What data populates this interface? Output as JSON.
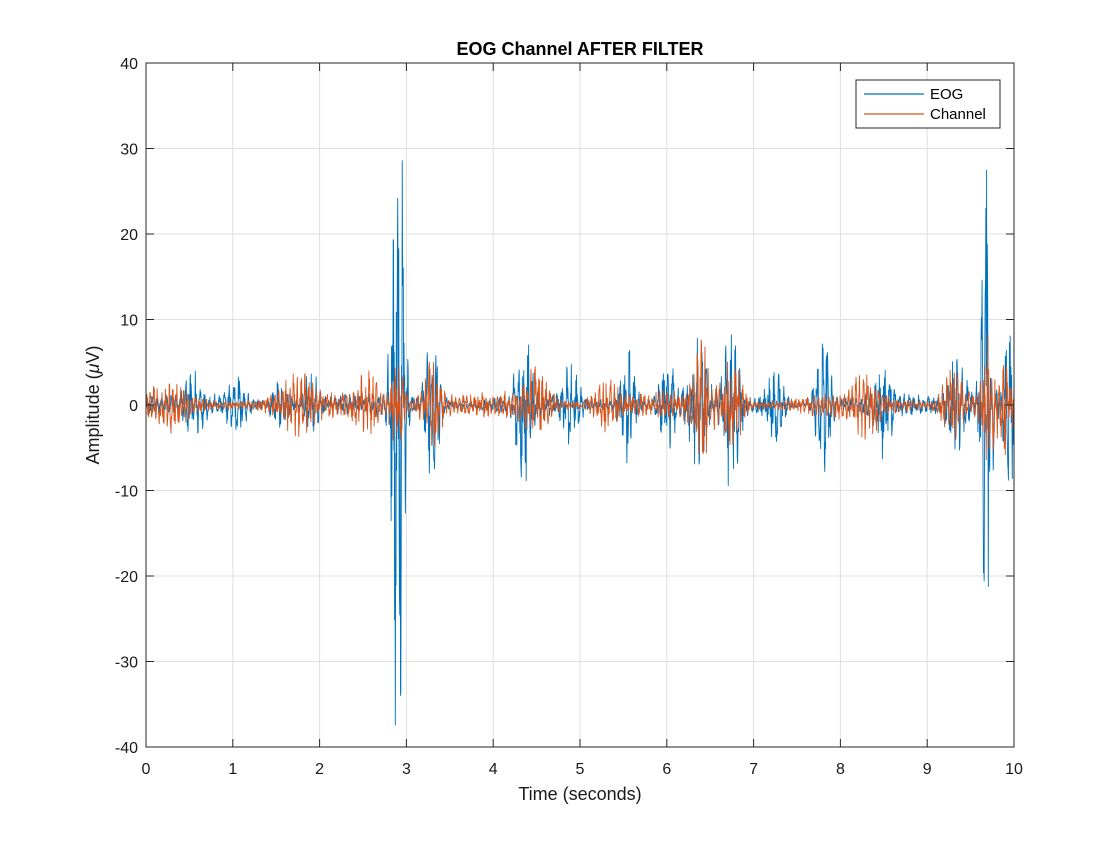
{
  "chart_data": {
    "type": "line",
    "title": "EOG Channel AFTER FILTER",
    "xlabel": "Time (seconds)",
    "ylabel_prefix": "Amplitude (",
    "ylabel_symbol": "μ",
    "ylabel_suffix": "V)",
    "xlim": [
      0,
      10
    ],
    "ylim": [
      -40,
      40
    ],
    "xticks": [
      "0",
      "1",
      "2",
      "3",
      "4",
      "5",
      "6",
      "7",
      "8",
      "9",
      "10"
    ],
    "yticks": [
      "40",
      "30",
      "20",
      "10",
      "0",
      "-10",
      "-20",
      "-30",
      "-40"
    ],
    "grid": true,
    "legend_position": "top-right",
    "sample_step_seconds": 0.004,
    "series": [
      {
        "name": "EOG",
        "color": "#0072bd",
        "base_amplitude": 1.1,
        "carrier_hz": 18,
        "bursts": [
          {
            "t": 0.55,
            "amp": 2.2,
            "width": 0.12
          },
          {
            "t": 1.05,
            "amp": 2.3,
            "width": 0.12
          },
          {
            "t": 1.55,
            "amp": 2.0,
            "width": 0.12
          },
          {
            "t": 1.9,
            "amp": 2.8,
            "width": 0.1
          },
          {
            "t": 2.85,
            "amp": 20,
            "width": 0.05
          },
          {
            "t": 2.93,
            "amp": 31,
            "width": 0.06
          },
          {
            "t": 3.3,
            "amp": 6.5,
            "width": 0.1
          },
          {
            "t": 4.35,
            "amp": 7.0,
            "width": 0.1
          },
          {
            "t": 4.9,
            "amp": 3.5,
            "width": 0.1
          },
          {
            "t": 5.55,
            "amp": 5.0,
            "width": 0.1
          },
          {
            "t": 6.0,
            "amp": 4.5,
            "width": 0.1
          },
          {
            "t": 6.35,
            "amp": 5.5,
            "width": 0.12
          },
          {
            "t": 6.75,
            "amp": 7.5,
            "width": 0.1
          },
          {
            "t": 7.25,
            "amp": 4.0,
            "width": 0.1
          },
          {
            "t": 7.8,
            "amp": 6.5,
            "width": 0.1
          },
          {
            "t": 8.5,
            "amp": 4.5,
            "width": 0.1
          },
          {
            "t": 9.35,
            "amp": 5.0,
            "width": 0.12
          },
          {
            "t": 9.68,
            "amp": 25,
            "width": 0.07
          },
          {
            "t": 9.95,
            "amp": 8.0,
            "width": 0.08
          }
        ]
      },
      {
        "name": "Channel",
        "color": "#d95319",
        "base_amplitude": 1.3,
        "carrier_hz": 23,
        "bursts": [
          {
            "t": 0.3,
            "amp": 1.5,
            "width": 0.2
          },
          {
            "t": 1.75,
            "amp": 2.0,
            "width": 0.2
          },
          {
            "t": 2.55,
            "amp": 2.5,
            "width": 0.15
          },
          {
            "t": 2.9,
            "amp": 5.5,
            "width": 0.08
          },
          {
            "t": 3.3,
            "amp": 4.0,
            "width": 0.12
          },
          {
            "t": 4.5,
            "amp": 3.0,
            "width": 0.15
          },
          {
            "t": 5.3,
            "amp": 2.5,
            "width": 0.15
          },
          {
            "t": 6.4,
            "amp": 5.5,
            "width": 0.12
          },
          {
            "t": 6.75,
            "amp": 5.0,
            "width": 0.12
          },
          {
            "t": 8.3,
            "amp": 2.5,
            "width": 0.15
          },
          {
            "t": 9.3,
            "amp": 3.0,
            "width": 0.15
          },
          {
            "t": 9.7,
            "amp": 5.5,
            "width": 0.08
          },
          {
            "t": 9.9,
            "amp": 4.0,
            "width": 0.08
          }
        ]
      }
    ]
  }
}
